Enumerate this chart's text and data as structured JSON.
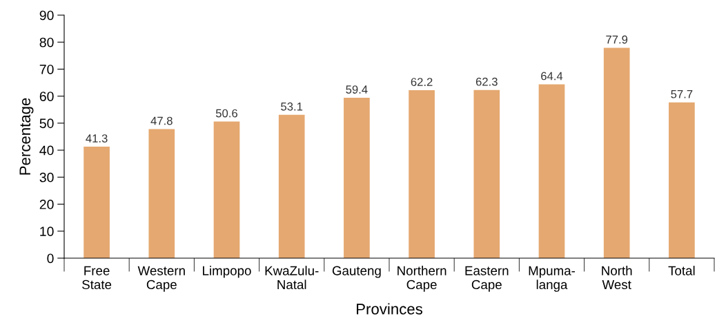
{
  "chart_data": {
    "type": "bar",
    "categories": [
      "Free\nState",
      "Western\nCape",
      "Limpopo",
      "KwaZulu-\nNatal",
      "Gauteng",
      "Northern\nCape",
      "Eastern\nCape",
      "Mpuma-\nlanga",
      "North\nWest",
      "Total"
    ],
    "values": [
      41.3,
      47.8,
      50.6,
      53.1,
      59.4,
      62.2,
      62.3,
      64.4,
      77.9,
      57.7
    ],
    "color": "#e5a870",
    "xlabel": "Provinces",
    "ylabel": "Percentage",
    "ylim": [
      0,
      90
    ],
    "yticks": [
      0,
      10,
      20,
      30,
      40,
      50,
      60,
      70,
      80,
      90
    ],
    "data_labels": true,
    "grid": false,
    "legend": false
  }
}
